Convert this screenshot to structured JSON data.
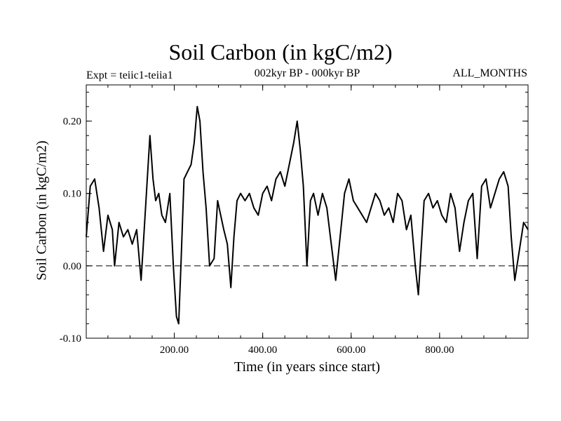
{
  "header": {
    "title": "Soil Carbon (in kgC/m2)",
    "subtitle": "002kyr BP - 000kyr BP",
    "experiment": "Expt = teiic1-teiia1",
    "months": "ALL_MONTHS"
  },
  "chart_data": {
    "type": "line",
    "title": "Soil Carbon (in kgC/m2)",
    "xlabel": "Time (in years since start)",
    "ylabel": "Soil Carbon (in kgC/m2)",
    "xlim": [
      1,
      1000
    ],
    "ylim": [
      -0.1,
      0.25
    ],
    "xticks": [
      200,
      400,
      600,
      800
    ],
    "xtick_labels": [
      "200.00",
      "400.00",
      "600.00",
      "800.00"
    ],
    "yticks": [
      -0.1,
      0.0,
      0.1,
      0.2
    ],
    "ytick_labels": [
      "-0.10",
      "0.00",
      "0.10",
      "0.20"
    ],
    "reference_line": 0.0,
    "grid": false,
    "series": [
      {
        "x": [
          1,
          10,
          20,
          30,
          40,
          50,
          60,
          65,
          75,
          85,
          95,
          105,
          115,
          125,
          130,
          138,
          145,
          152,
          158,
          165,
          172,
          180,
          190,
          198,
          205,
          210,
          215,
          222,
          230,
          238,
          245,
          252,
          258,
          265,
          272,
          280,
          290,
          298,
          305,
          312,
          320,
          328,
          335,
          342,
          350,
          360,
          370,
          380,
          390,
          400,
          410,
          420,
          430,
          440,
          450,
          460,
          470,
          478,
          485,
          492,
          500,
          508,
          515,
          525,
          535,
          545,
          555,
          565,
          575,
          585,
          595,
          605,
          615,
          625,
          635,
          645,
          655,
          665,
          675,
          685,
          695,
          705,
          715,
          725,
          735,
          745,
          752,
          758,
          765,
          775,
          785,
          795,
          805,
          815,
          825,
          835,
          845,
          855,
          865,
          875,
          885,
          895,
          905,
          915,
          925,
          935,
          945,
          955,
          962,
          970,
          975,
          980,
          990,
          1000
        ],
        "values": [
          0.04,
          0.11,
          0.12,
          0.08,
          0.02,
          0.07,
          0.05,
          0.0,
          0.06,
          0.04,
          0.05,
          0.03,
          0.05,
          -0.02,
          0.03,
          0.11,
          0.18,
          0.12,
          0.09,
          0.1,
          0.07,
          0.06,
          0.1,
          0.0,
          -0.07,
          -0.08,
          0.0,
          0.12,
          0.13,
          0.14,
          0.17,
          0.22,
          0.2,
          0.13,
          0.08,
          0.0,
          0.01,
          0.09,
          0.07,
          0.05,
          0.03,
          -0.03,
          0.04,
          0.09,
          0.1,
          0.09,
          0.1,
          0.08,
          0.07,
          0.1,
          0.11,
          0.09,
          0.12,
          0.13,
          0.11,
          0.14,
          0.17,
          0.2,
          0.16,
          0.11,
          0.0,
          0.09,
          0.1,
          0.07,
          0.1,
          0.08,
          0.03,
          -0.02,
          0.04,
          0.1,
          0.12,
          0.09,
          0.08,
          0.07,
          0.06,
          0.08,
          0.1,
          0.09,
          0.07,
          0.08,
          0.06,
          0.1,
          0.09,
          0.05,
          0.07,
          0.0,
          -0.04,
          0.02,
          0.09,
          0.1,
          0.08,
          0.09,
          0.07,
          0.06,
          0.1,
          0.08,
          0.02,
          0.06,
          0.09,
          0.1,
          0.01,
          0.11,
          0.12,
          0.08,
          0.1,
          0.12,
          0.13,
          0.11,
          0.04,
          -0.02,
          0.0,
          0.02,
          0.06,
          0.05
        ]
      }
    ]
  }
}
